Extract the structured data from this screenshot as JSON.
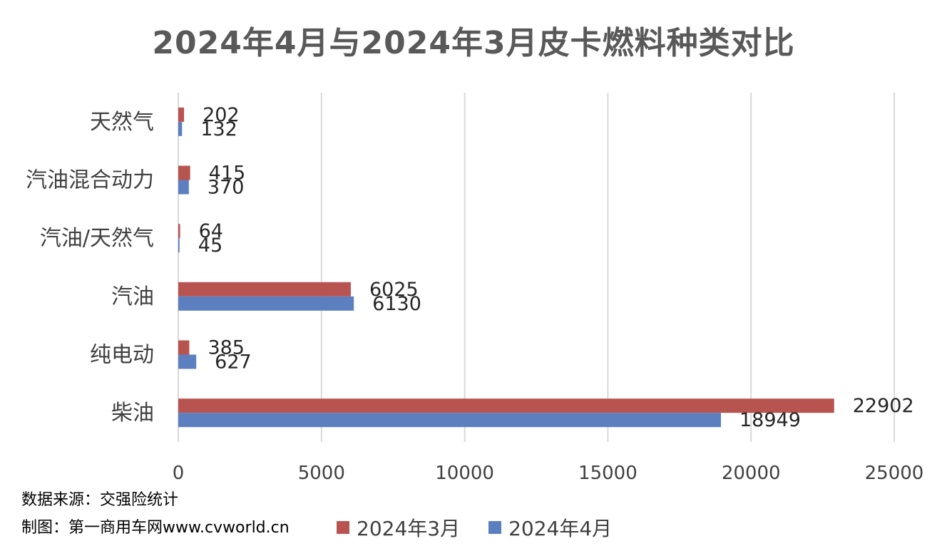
{
  "chart_data": {
    "type": "bar",
    "orientation": "horizontal",
    "title": "2024年4月与2024年3月皮卡燃料种类对比",
    "categories": [
      "天然气",
      "汽油混合动力",
      "汽油/天然气",
      "汽油",
      "纯电动",
      "柴油"
    ],
    "series": [
      {
        "name": "2024年3月",
        "color": "#b85450",
        "values": [
          202,
          415,
          64,
          6025,
          385,
          22902
        ]
      },
      {
        "name": "2024年4月",
        "color": "#5b7fbf",
        "values": [
          132,
          370,
          45,
          6130,
          627,
          18949
        ]
      }
    ],
    "xlim": [
      0,
      25000
    ],
    "xticks": [
      "0",
      "5000",
      "10000",
      "15000",
      "20000",
      "25000"
    ],
    "grid": true,
    "legend_position": "bottom"
  },
  "notes": {
    "source": "数据来源：交强险统计",
    "maker": "制图：第一商用车网www.cvworld.cn"
  }
}
